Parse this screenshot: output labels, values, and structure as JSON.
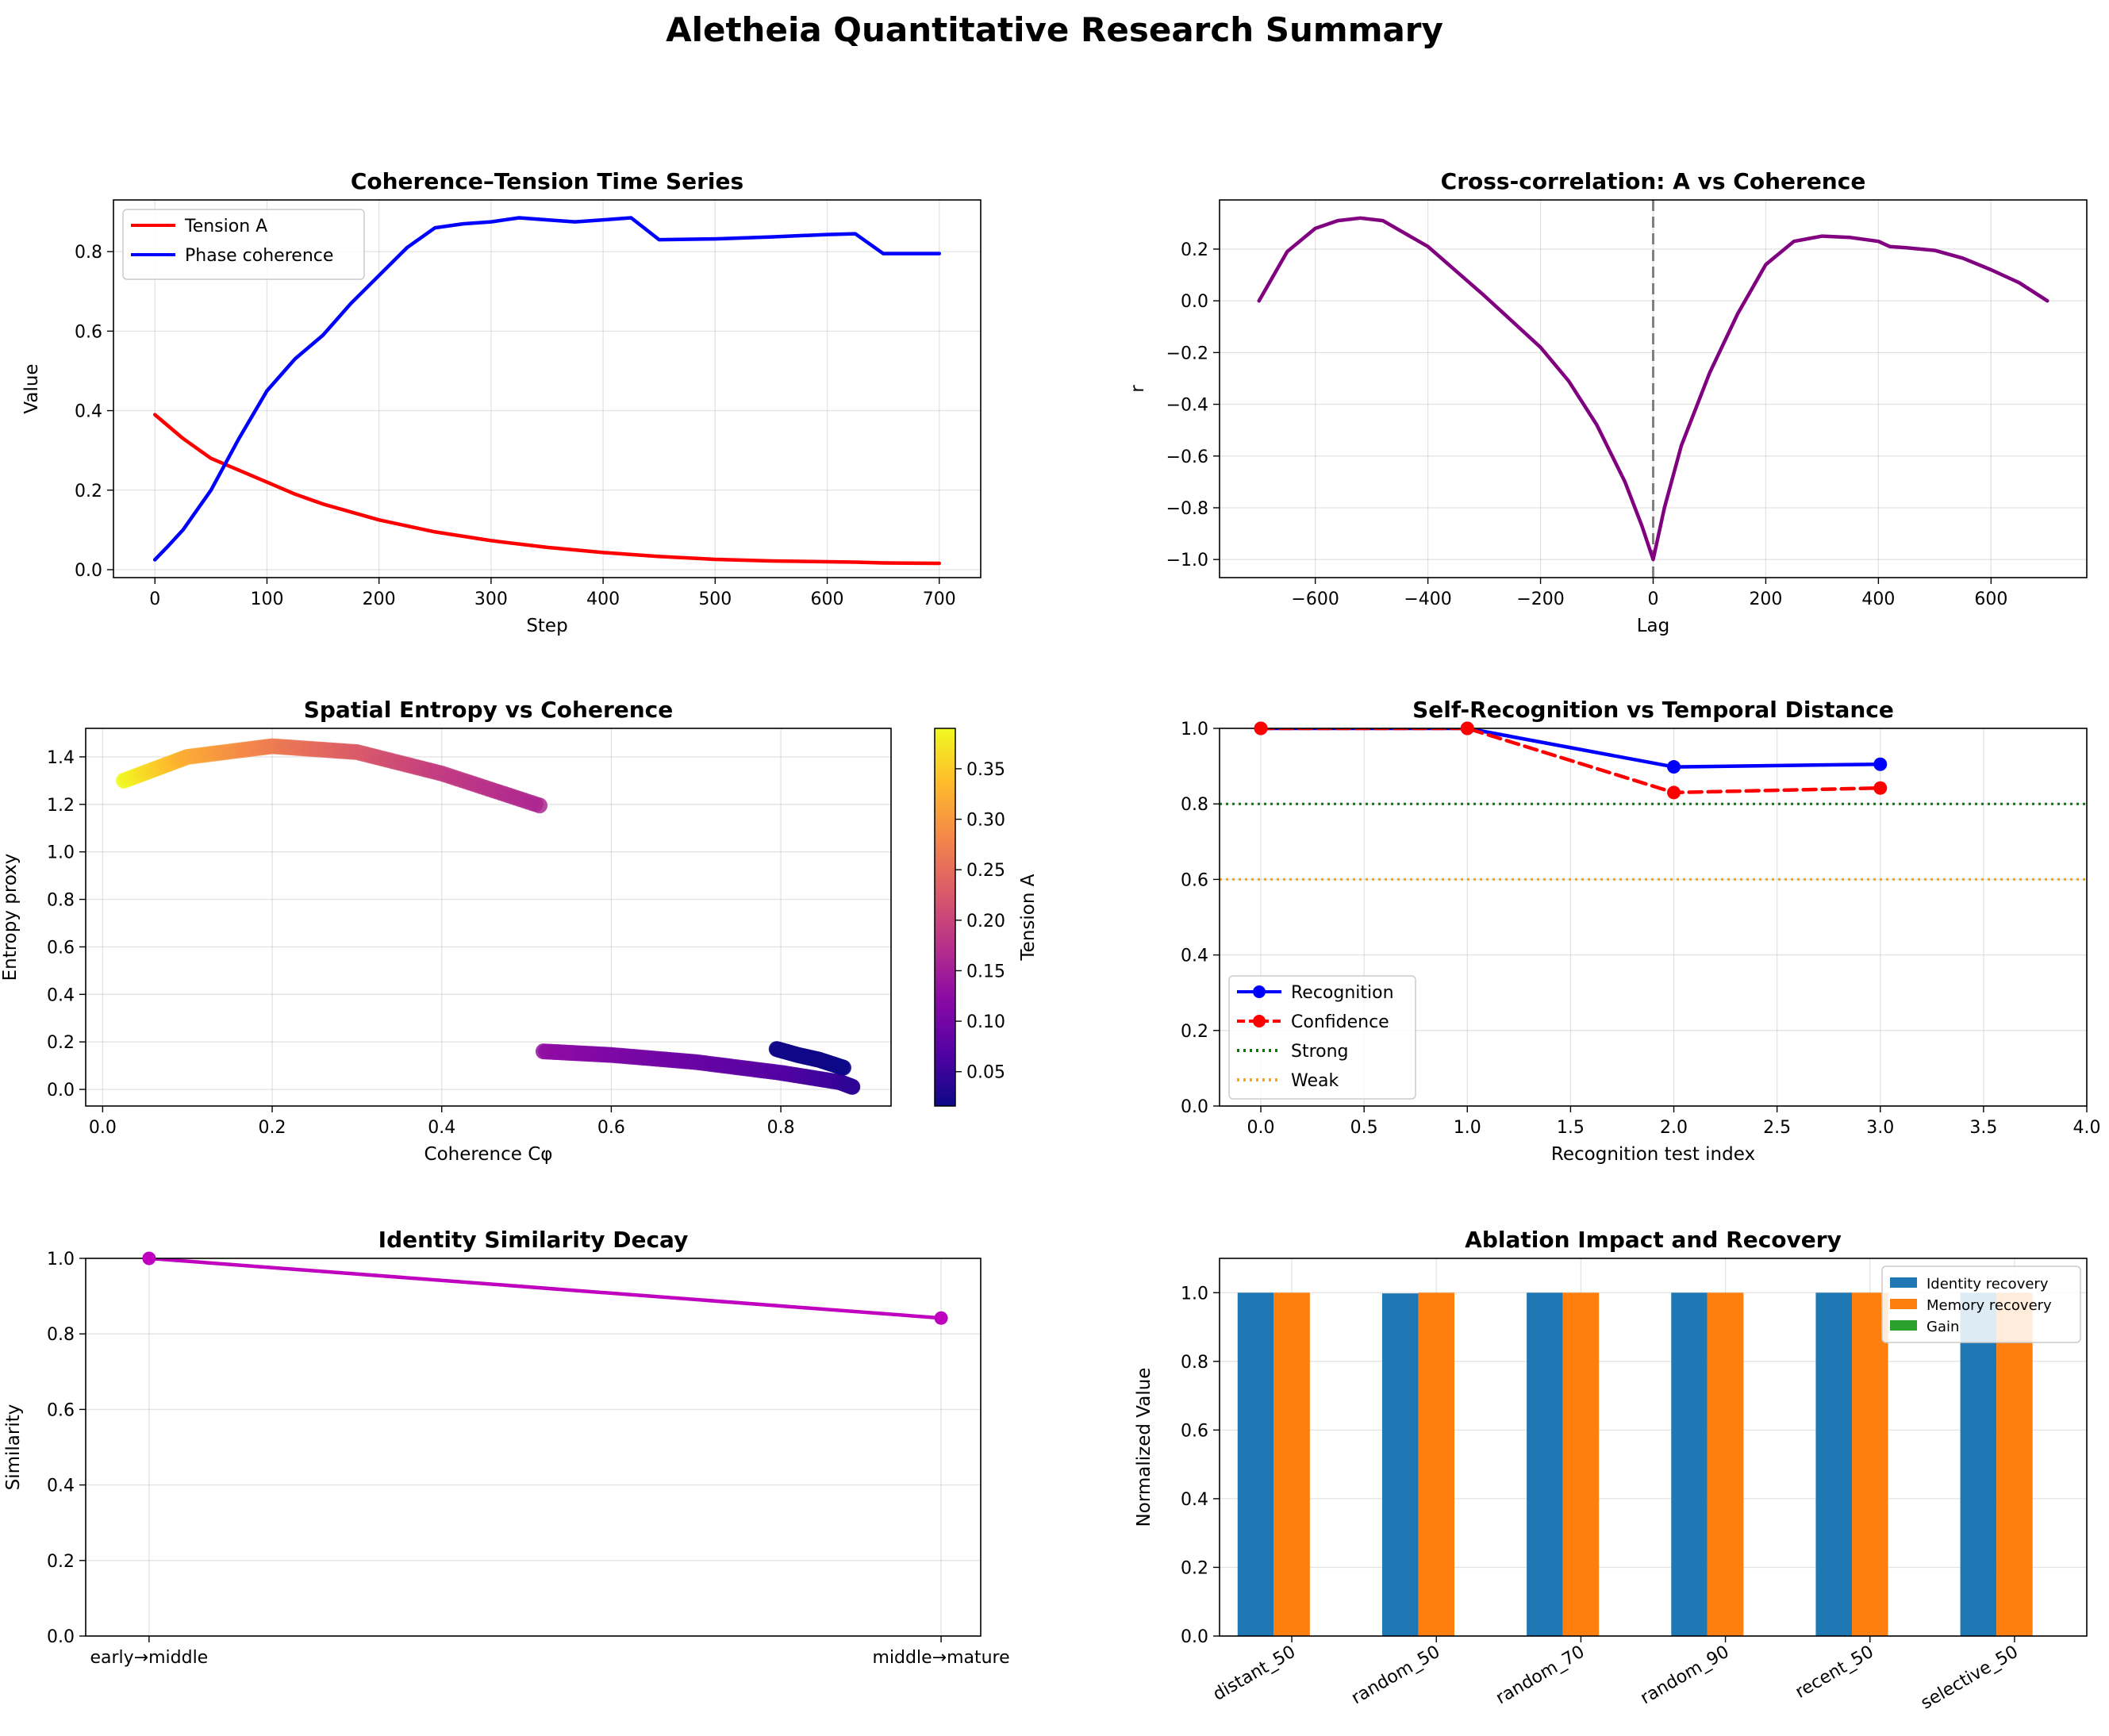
{
  "figure": {
    "title": "Aletheia Quantitative Research Summary"
  },
  "colors": {
    "tension": "#ff0000",
    "coherence": "#0000ff",
    "xcorr": "#800080",
    "strong": "#008000",
    "weak": "#ffa500",
    "similarity": "#bf00bf",
    "identity_recovery": "#1f77b4",
    "memory_recovery": "#ff7f0e",
    "gain": "#2ca02c"
  },
  "chart_data": [
    {
      "id": "time_series",
      "type": "line",
      "title": "Coherence–Tension Time Series",
      "xlabel": "Step",
      "ylabel": "Value",
      "xlim": [
        -37,
        737
      ],
      "ylim": [
        -0.02,
        0.93
      ],
      "xticks": [
        0,
        100,
        200,
        300,
        400,
        500,
        600,
        700
      ],
      "yticks": [
        0.0,
        0.2,
        0.4,
        0.6,
        0.8
      ],
      "legend": "upper-left",
      "series": [
        {
          "name": "Tension A",
          "color": "#ff0000",
          "x": [
            0,
            25,
            50,
            75,
            100,
            125,
            150,
            175,
            200,
            250,
            300,
            350,
            400,
            450,
            500,
            550,
            600,
            625,
            650,
            700
          ],
          "y": [
            0.39,
            0.33,
            0.28,
            0.25,
            0.22,
            0.19,
            0.165,
            0.145,
            0.125,
            0.095,
            0.073,
            0.056,
            0.043,
            0.033,
            0.026,
            0.022,
            0.02,
            0.019,
            0.017,
            0.016
          ]
        },
        {
          "name": "Phase coherence",
          "color": "#0000ff",
          "x": [
            0,
            12,
            25,
            50,
            75,
            100,
            125,
            150,
            175,
            200,
            225,
            250,
            275,
            300,
            325,
            350,
            375,
            400,
            425,
            450,
            500,
            550,
            600,
            625,
            650,
            700
          ],
          "y": [
            0.025,
            0.06,
            0.1,
            0.2,
            0.33,
            0.45,
            0.53,
            0.59,
            0.67,
            0.74,
            0.81,
            0.86,
            0.87,
            0.875,
            0.885,
            0.88,
            0.875,
            0.88,
            0.885,
            0.83,
            0.832,
            0.837,
            0.843,
            0.845,
            0.795,
            0.795
          ]
        }
      ]
    },
    {
      "id": "xcorr",
      "type": "line",
      "title": "Cross-correlation: A vs Coherence",
      "xlabel": "Lag",
      "ylabel": "r",
      "xlim": [
        -770,
        770
      ],
      "ylim": [
        -1.07,
        0.39
      ],
      "xticks": [
        -600,
        -400,
        -200,
        0,
        200,
        400,
        600
      ],
      "yticks": [
        -1.0,
        -0.8,
        -0.6,
        -0.4,
        -0.2,
        0.0,
        0.2
      ],
      "vline": 0,
      "series": [
        {
          "name": "",
          "color": "#800080",
          "x": [
            -700,
            -650,
            -600,
            -560,
            -520,
            -480,
            -400,
            -300,
            -200,
            -150,
            -100,
            -50,
            -20,
            0,
            20,
            50,
            100,
            150,
            200,
            250,
            300,
            350,
            400,
            420,
            450,
            500,
            550,
            600,
            650,
            700
          ],
          "y": [
            0.0,
            0.19,
            0.28,
            0.31,
            0.32,
            0.31,
            0.21,
            0.02,
            -0.18,
            -0.31,
            -0.48,
            -0.7,
            -0.87,
            -1.0,
            -0.8,
            -0.56,
            -0.28,
            -0.05,
            0.14,
            0.23,
            0.25,
            0.245,
            0.23,
            0.21,
            0.205,
            0.195,
            0.165,
            0.12,
            0.07,
            0.0
          ]
        }
      ]
    },
    {
      "id": "entropy",
      "type": "scatter",
      "title": "Spatial Entropy vs Coherence",
      "xlabel": "Coherence Cφ",
      "ylabel": "Entropy proxy",
      "xlim": [
        -0.02,
        0.93
      ],
      "ylim": [
        -0.07,
        1.52
      ],
      "xticks": [
        0.0,
        0.2,
        0.4,
        0.6,
        0.8
      ],
      "yticks": [
        0.0,
        0.2,
        0.4,
        0.6,
        0.8,
        1.0,
        1.2,
        1.4
      ],
      "colorbar": {
        "label": "Tension A",
        "min": 0.016,
        "max": 0.39,
        "ticks": [
          0.05,
          0.1,
          0.15,
          0.2,
          0.25,
          0.3,
          0.35
        ]
      },
      "segments": [
        {
          "x": [
            0.025,
            0.1,
            0.2,
            0.3,
            0.4,
            0.52
          ],
          "y": [
            1.3,
            1.4,
            1.445,
            1.42,
            1.33,
            1.19
          ],
          "c": [
            0.39,
            0.32,
            0.27,
            0.23,
            0.19,
            0.16
          ]
        },
        {
          "x": [
            0.52,
            0.6,
            0.7,
            0.8,
            0.87,
            0.885
          ],
          "y": [
            0.16,
            0.145,
            0.115,
            0.07,
            0.03,
            0.01
          ],
          "c": [
            0.13,
            0.11,
            0.09,
            0.07,
            0.05,
            0.04
          ]
        },
        {
          "x": [
            0.795,
            0.82,
            0.845,
            0.875
          ],
          "y": [
            0.17,
            0.145,
            0.125,
            0.09
          ],
          "c": [
            0.018,
            0.018,
            0.017,
            0.016
          ]
        }
      ]
    },
    {
      "id": "recognition",
      "type": "line",
      "title": "Self-Recognition vs Temporal Distance",
      "xlabel": "Recognition test index",
      "ylabel": "",
      "xlim": [
        -0.2,
        4.0
      ],
      "ylim": [
        0.0,
        1.0
      ],
      "xticks": [
        0.0,
        0.5,
        1.0,
        1.5,
        2.0,
        2.5,
        3.0,
        3.5,
        4.0
      ],
      "yticks": [
        0.0,
        0.2,
        0.4,
        0.6,
        0.8,
        1.0
      ],
      "legend": "lower-left",
      "series": [
        {
          "name": "Recognition",
          "color": "#0000ff",
          "style": "solid",
          "marker": true,
          "x": [
            0,
            1,
            2,
            3
          ],
          "y": [
            1.0,
            1.0,
            0.898,
            0.905
          ]
        },
        {
          "name": "Confidence",
          "color": "#ff0000",
          "style": "dashed",
          "marker": true,
          "x": [
            0,
            1,
            2,
            3
          ],
          "y": [
            1.0,
            1.0,
            0.83,
            0.842
          ]
        }
      ],
      "hlines": [
        {
          "name": "Strong",
          "y": 0.8,
          "color": "#008000"
        },
        {
          "name": "Weak",
          "y": 0.6,
          "color": "#ffa500"
        }
      ]
    },
    {
      "id": "similarity",
      "type": "line",
      "title": "Identity Similarity Decay",
      "xlabel": "",
      "ylabel": "Similarity",
      "categories": [
        "early→middle",
        "middle→mature"
      ],
      "ylim": [
        0.0,
        1.0
      ],
      "yticks": [
        0.0,
        0.2,
        0.4,
        0.6,
        0.8,
        1.0
      ],
      "series": [
        {
          "name": "",
          "color": "#bf00bf",
          "values": [
            1.0,
            0.842
          ]
        }
      ]
    },
    {
      "id": "ablation",
      "type": "bar",
      "title": "Ablation Impact and Recovery",
      "xlabel": "",
      "ylabel": "Normalized Value",
      "categories": [
        "distant_50",
        "random_50",
        "random_70",
        "random_90",
        "recent_50",
        "selective_50"
      ],
      "ylim": [
        0.0,
        1.1
      ],
      "yticks": [
        0.0,
        0.2,
        0.4,
        0.6,
        0.8,
        1.0
      ],
      "legend": "upper-right",
      "series": [
        {
          "name": "Identity recovery",
          "color": "#1f77b4",
          "values": [
            1.0,
            0.998,
            1.0,
            1.0,
            1.0,
            1.0
          ]
        },
        {
          "name": "Memory recovery",
          "color": "#ff7f0e",
          "values": [
            1.0,
            1.0,
            1.0,
            1.0,
            1.0,
            1.0
          ]
        },
        {
          "name": "Gain",
          "color": "#2ca02c",
          "values": [
            0.0,
            0.0,
            0.0,
            0.0,
            0.0,
            0.0
          ]
        }
      ]
    }
  ]
}
